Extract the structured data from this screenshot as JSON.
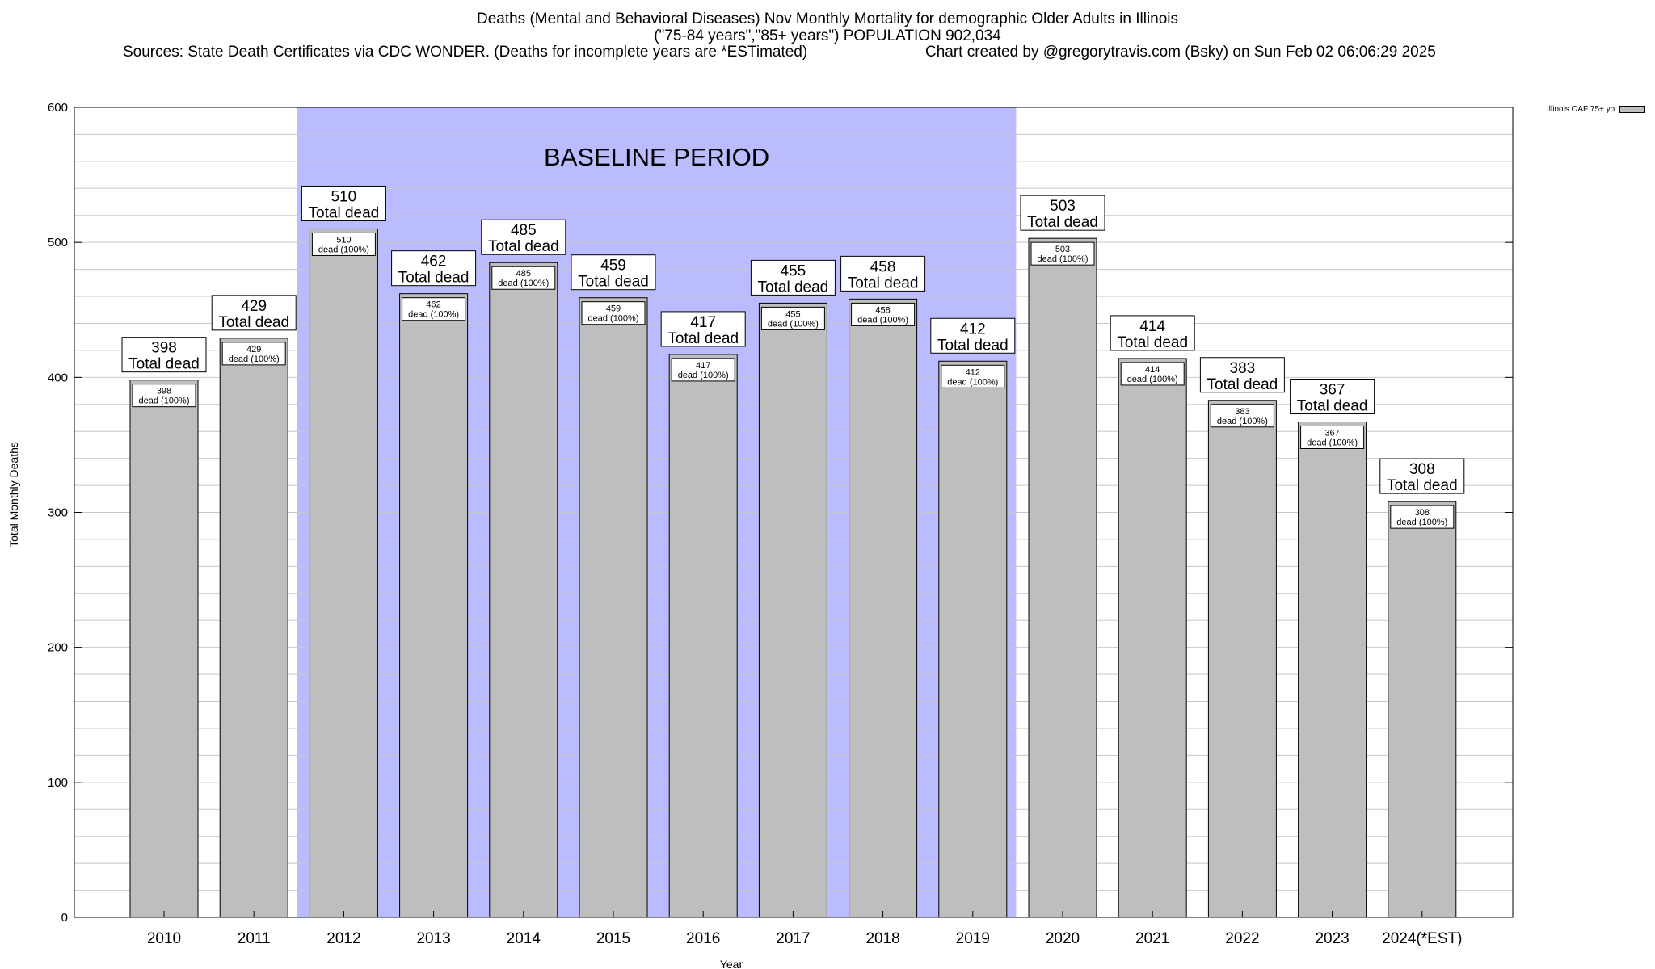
{
  "title_line1": "Deaths (Mental and Behavioral Diseases) Nov Monthly Mortality for demographic Older Adults in Illinois",
  "title_line2": "(\"75-84 years\",\"85+ years\") POPULATION 902,034",
  "title_line3_left": "Sources: State Death Certificates via CDC WONDER. (Deaths for incomplete years are *ESTimated)",
  "title_line3_right": "Chart created by @gregorytravis.com (Bsky) on Sun Feb 02 06:06:29 2025",
  "legend_label": "Illinois OAF 75+ yo",
  "colors": {
    "bar": "#bebebe",
    "baseline": "#bbbbff",
    "grid": "#c8c8c8"
  },
  "chart_data": {
    "type": "bar",
    "title": "Deaths (Mental and Behavioral Diseases) Nov Monthly Mortality for demographic Older Adults in Illinois",
    "xlabel": "Year",
    "ylabel": "Total Monthly Deaths",
    "ylim": [
      0,
      600
    ],
    "yticks": [
      0,
      100,
      200,
      300,
      400,
      500,
      600
    ],
    "grid": true,
    "legend_position": "top-right, outside plot",
    "categories": [
      "2010",
      "2011",
      "2012",
      "2013",
      "2014",
      "2015",
      "2016",
      "2017",
      "2018",
      "2019",
      "2020",
      "2021",
      "2022",
      "2023",
      "2024(*EST)"
    ],
    "series": [
      {
        "name": "Illinois OAF 75+ yo",
        "values": [
          398,
          429,
          510,
          462,
          485,
          459,
          417,
          455,
          458,
          412,
          503,
          414,
          383,
          367,
          308
        ]
      }
    ],
    "top_label_suffix": "Total dead",
    "inner_label_suffix": "dead (100%)",
    "annotation": {
      "text": "BASELINE PERIOD",
      "from": "2012",
      "to": "2019"
    }
  }
}
